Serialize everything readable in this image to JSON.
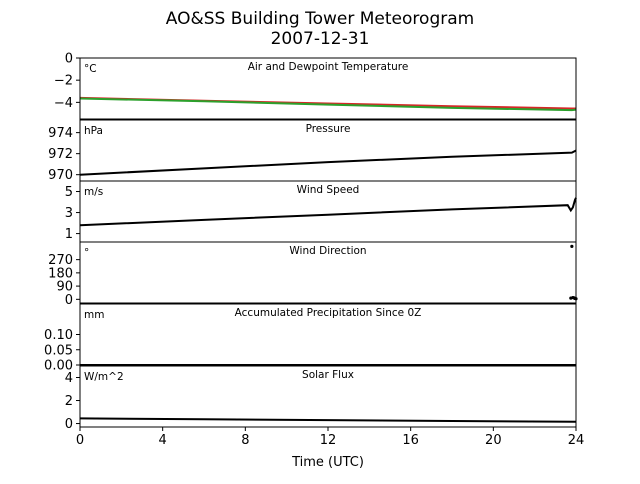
{
  "figure": {
    "title_line1": "AO&SS Building Tower Meteorogram",
    "title_line2": "2007-12-31",
    "xlabel": "Time (UTC)"
  },
  "chart_data": {
    "type": "line",
    "title": "AO&SS Building Tower Meteorogram 2007-12-31",
    "xlabel": "Time (UTC)",
    "xlim": [
      0,
      24
    ],
    "x_ticks": [
      "0",
      "4",
      "8",
      "12",
      "16",
      "20",
      "24"
    ],
    "panels": [
      {
        "title": "Air and Dewpoint Temperature",
        "unit": "°C",
        "ylim": [
          -5.5,
          0
        ],
        "y_ticks": [
          "0",
          "−2",
          "−4"
        ],
        "y_tick_values": [
          0,
          -2,
          -4
        ],
        "series": [
          {
            "color": "#d62728",
            "x": [
              0,
              6,
              12,
              18,
              23.8,
              24
            ],
            "y": [
              -3.6,
              -3.85,
              -4.1,
              -4.35,
              -4.55,
              -4.55
            ]
          },
          {
            "color": "#2ca02c",
            "x": [
              0,
              6,
              12,
              18,
              23.8,
              24
            ],
            "y": [
              -3.65,
              -3.9,
              -4.2,
              -4.5,
              -4.7,
              -4.65
            ]
          }
        ]
      },
      {
        "title": "Pressure",
        "unit": "hPa",
        "ylim": [
          969.4,
          975.2
        ],
        "y_ticks": [
          "974",
          "972",
          "970"
        ],
        "y_tick_values": [
          974,
          972,
          970
        ],
        "series": [
          {
            "color": "#000000",
            "x": [
              0,
              6,
              12,
              18,
              23.8,
              24
            ],
            "y": [
              970.0,
              970.6,
              971.2,
              971.7,
              972.1,
              972.3
            ]
          }
        ]
      },
      {
        "title": "Wind Speed",
        "unit": "m/s",
        "ylim": [
          0.2,
          6.0
        ],
        "y_ticks": [
          "5",
          "3",
          "1"
        ],
        "y_tick_values": [
          5,
          3,
          1
        ],
        "series": [
          {
            "color": "#000000",
            "x": [
              0,
              6,
              12,
              18,
              23.6,
              23.75,
              23.85,
              23.95,
              24
            ],
            "y": [
              1.8,
              2.3,
              2.8,
              3.3,
              3.7,
              3.2,
              3.5,
              4.2,
              4.4
            ]
          }
        ]
      },
      {
        "title": "Wind Direction",
        "unit": "°",
        "ylim": [
          -25,
          390
        ],
        "y_ticks": [
          "270",
          "180",
          "90",
          "0"
        ],
        "y_tick_values": [
          270,
          180,
          90,
          0
        ],
        "series": [
          {
            "color": "#000000",
            "mode": "points",
            "x": [
              23.8,
              23.75,
              23.85,
              23.95,
              24.0,
              23.9
            ],
            "y": [
              360,
              8,
              12,
              6,
              4,
              10
            ]
          }
        ]
      },
      {
        "title": "Accumulated Precipitation Since 0Z",
        "unit": "mm",
        "ylim": [
          0,
          0.2
        ],
        "y_ticks": [
          "0.10",
          "0.05",
          "0.00"
        ],
        "y_tick_values": [
          0.1,
          0.05,
          0.0
        ],
        "series": [
          {
            "color": "#000000",
            "x": [
              0,
              24
            ],
            "y": [
              0,
              0
            ]
          }
        ]
      },
      {
        "title": "Solar Flux",
        "unit": "W/m^2",
        "ylim": [
          -0.3,
          5.0
        ],
        "y_ticks": [
          "4",
          "2",
          "0"
        ],
        "y_tick_values": [
          4,
          2,
          0
        ],
        "series": [
          {
            "color": "#000000",
            "x": [
              0,
              6,
              12,
              18,
              24
            ],
            "y": [
              0.45,
              0.37,
              0.3,
              0.22,
              0.15
            ]
          }
        ]
      }
    ]
  }
}
